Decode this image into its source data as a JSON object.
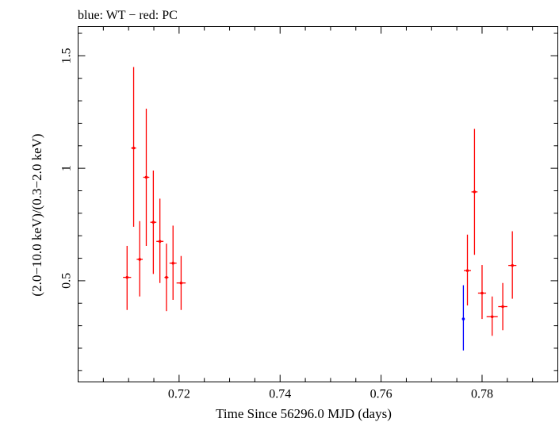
{
  "chart_data": {
    "type": "scatter",
    "title": "blue: WT − red: PC",
    "xlabel": "Time Since 56296.0 MJD (days)",
    "ylabel": "(2.0−10.0 keV)/(0.3−2.0 keV)",
    "xlim": [
      0.7,
      0.795
    ],
    "ylim": [
      0.05,
      1.63
    ],
    "x_ticks": [
      0.72,
      0.74,
      0.76,
      0.78
    ],
    "x_tick_labels": [
      "0.72",
      "0.74",
      "0.76",
      "0.78"
    ],
    "y_ticks": [
      0.5,
      1,
      1.5
    ],
    "y_tick_labels": [
      "0.5",
      "1",
      "1.5"
    ],
    "grid": false,
    "series": [
      {
        "color": "#0000ff",
        "points": [
          {
            "x": 0.7763,
            "y": 0.33,
            "xerr": 0.0,
            "ylo": 0.19,
            "yhi": 0.48
          }
        ]
      },
      {
        "color": "#ff0000",
        "points": [
          {
            "x": 0.7097,
            "y": 0.515,
            "xerr": 0.0008,
            "ylo": 0.37,
            "yhi": 0.655
          },
          {
            "x": 0.711,
            "y": 1.09,
            "xerr": 0.0005,
            "ylo": 0.74,
            "yhi": 1.45
          },
          {
            "x": 0.7122,
            "y": 0.595,
            "xerr": 0.0006,
            "ylo": 0.43,
            "yhi": 0.765
          },
          {
            "x": 0.7135,
            "y": 0.96,
            "xerr": 0.0006,
            "ylo": 0.655,
            "yhi": 1.265
          },
          {
            "x": 0.7149,
            "y": 0.76,
            "xerr": 0.0006,
            "ylo": 0.53,
            "yhi": 0.99
          },
          {
            "x": 0.7162,
            "y": 0.675,
            "xerr": 0.0007,
            "ylo": 0.49,
            "yhi": 0.865
          },
          {
            "x": 0.7175,
            "y": 0.515,
            "xerr": 0.0004,
            "ylo": 0.365,
            "yhi": 0.665
          },
          {
            "x": 0.7188,
            "y": 0.578,
            "xerr": 0.0007,
            "ylo": 0.415,
            "yhi": 0.745
          },
          {
            "x": 0.7204,
            "y": 0.49,
            "xerr": 0.0009,
            "ylo": 0.37,
            "yhi": 0.61
          },
          {
            "x": 0.7771,
            "y": 0.545,
            "xerr": 0.0007,
            "ylo": 0.39,
            "yhi": 0.705
          },
          {
            "x": 0.7785,
            "y": 0.895,
            "xerr": 0.0006,
            "ylo": 0.615,
            "yhi": 1.175
          },
          {
            "x": 0.78,
            "y": 0.445,
            "xerr": 0.0008,
            "ylo": 0.33,
            "yhi": 0.57
          },
          {
            "x": 0.782,
            "y": 0.34,
            "xerr": 0.0011,
            "ylo": 0.255,
            "yhi": 0.43
          },
          {
            "x": 0.7841,
            "y": 0.385,
            "xerr": 0.0009,
            "ylo": 0.28,
            "yhi": 0.49
          },
          {
            "x": 0.786,
            "y": 0.568,
            "xerr": 0.0008,
            "ylo": 0.42,
            "yhi": 0.72
          }
        ]
      }
    ]
  }
}
